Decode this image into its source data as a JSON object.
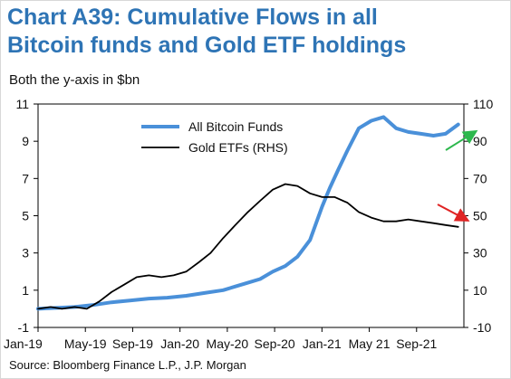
{
  "page": {
    "title_line1": "Chart A39: Cumulative Flows in all",
    "title_line2": "Bitcoin funds and Gold ETF holdings",
    "subtitle": "Both the y-axis in $bn",
    "source": "Source: Bloomberg Finance L.P., J.P. Morgan"
  },
  "chart_data": {
    "type": "line",
    "title": "Cumulative Flows in all Bitcoin funds and Gold ETF holdings",
    "x_tick_labels": [
      "Jan-19",
      "May-19",
      "Sep-19",
      "Jan-20",
      "May-20",
      "Sep-20",
      "Jan-21",
      "May 21",
      "Sep-21"
    ],
    "x_range": [
      "2019-01-01",
      "2021-11-15"
    ],
    "left_axis": {
      "ylim": [
        -1,
        11
      ],
      "ticks": [
        -1,
        1,
        3,
        5,
        7,
        9,
        11
      ],
      "label": "$bn"
    },
    "right_axis": {
      "ylim": [
        -10,
        110
      ],
      "ticks": [
        -10,
        10,
        30,
        50,
        70,
        90,
        110
      ],
      "label": "$bn"
    },
    "legend_position": "top-center",
    "series": [
      {
        "name": "All Bitcoin Funds",
        "axis": "left",
        "color": "#4a90d9",
        "points": [
          [
            "2019-01-01",
            0.0
          ],
          [
            "2019-02-15",
            0.05
          ],
          [
            "2019-04-01",
            0.1
          ],
          [
            "2019-05-15",
            0.2
          ],
          [
            "2019-07-01",
            0.35
          ],
          [
            "2019-08-15",
            0.45
          ],
          [
            "2019-10-01",
            0.55
          ],
          [
            "2019-11-15",
            0.6
          ],
          [
            "2020-01-01",
            0.7
          ],
          [
            "2020-02-15",
            0.85
          ],
          [
            "2020-04-01",
            1.0
          ],
          [
            "2020-05-01",
            1.2
          ],
          [
            "2020-06-01",
            1.4
          ],
          [
            "2020-07-01",
            1.6
          ],
          [
            "2020-08-01",
            2.0
          ],
          [
            "2020-09-01",
            2.3
          ],
          [
            "2020-10-01",
            2.8
          ],
          [
            "2020-11-01",
            3.7
          ],
          [
            "2020-12-01",
            5.5
          ],
          [
            "2020-12-20",
            6.5
          ],
          [
            "2021-01-10",
            7.5
          ],
          [
            "2021-02-01",
            8.5
          ],
          [
            "2021-03-01",
            9.7
          ],
          [
            "2021-04-01",
            10.1
          ],
          [
            "2021-05-01",
            10.3
          ],
          [
            "2021-06-01",
            9.7
          ],
          [
            "2021-07-01",
            9.5
          ],
          [
            "2021-08-01",
            9.4
          ],
          [
            "2021-09-01",
            9.3
          ],
          [
            "2021-10-01",
            9.4
          ],
          [
            "2021-11-01",
            9.9
          ]
        ]
      },
      {
        "name": "Gold ETFs (RHS)",
        "axis": "right",
        "color": "#000000",
        "points": [
          [
            "2019-01-01",
            0
          ],
          [
            "2019-02-01",
            1
          ],
          [
            "2019-03-01",
            0
          ],
          [
            "2019-04-01",
            1
          ],
          [
            "2019-05-01",
            0
          ],
          [
            "2019-06-01",
            4
          ],
          [
            "2019-07-01",
            9
          ],
          [
            "2019-08-01",
            13
          ],
          [
            "2019-09-01",
            17
          ],
          [
            "2019-10-01",
            18
          ],
          [
            "2019-11-01",
            17
          ],
          [
            "2019-12-01",
            18
          ],
          [
            "2020-01-01",
            20
          ],
          [
            "2020-02-01",
            25
          ],
          [
            "2020-03-01",
            30
          ],
          [
            "2020-04-01",
            38
          ],
          [
            "2020-05-01",
            45
          ],
          [
            "2020-06-01",
            52
          ],
          [
            "2020-07-01",
            58
          ],
          [
            "2020-08-01",
            64
          ],
          [
            "2020-09-01",
            67
          ],
          [
            "2020-10-01",
            66
          ],
          [
            "2020-11-01",
            62
          ],
          [
            "2020-12-01",
            60
          ],
          [
            "2021-01-01",
            60
          ],
          [
            "2021-02-01",
            57
          ],
          [
            "2021-03-01",
            52
          ],
          [
            "2021-04-01",
            49
          ],
          [
            "2021-05-01",
            47
          ],
          [
            "2021-06-01",
            47
          ],
          [
            "2021-07-01",
            48
          ],
          [
            "2021-08-01",
            47
          ],
          [
            "2021-09-01",
            46
          ],
          [
            "2021-10-01",
            45
          ],
          [
            "2021-11-01",
            44
          ]
        ]
      }
    ],
    "annotations": [
      {
        "type": "arrow",
        "color": "#2db84d",
        "points_to": "All Bitcoin Funds"
      },
      {
        "type": "arrow",
        "color": "#e02424",
        "points_to": "Gold ETFs (RHS)"
      }
    ]
  }
}
